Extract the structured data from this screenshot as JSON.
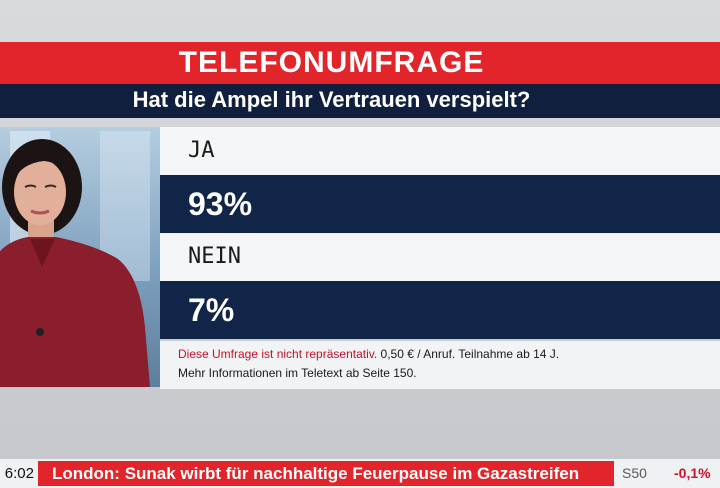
{
  "header": {
    "title": "TELEFONUMFRAGE",
    "question": "Hat die Ampel ihr Vertrauen verspielt?",
    "accent_color": "#e1252b",
    "navy_color": "#0f1f3d"
  },
  "poll": {
    "options": [
      {
        "label": "JA",
        "value": "93%"
      },
      {
        "label": "NEIN",
        "value": "7%"
      }
    ],
    "footnote": {
      "line1_red": "Diese Umfrage ist nicht repräsentativ.",
      "line1_rest": " 0,50 € / Anruf. Teilnahme ab 14 J.",
      "line2": "Mehr Informationen im Teletext ab Seite 150."
    }
  },
  "ticker": {
    "clock": "6:02",
    "headline": "London: Sunak wirbt für nachhaltige Feuerpause im Gazastreifen",
    "index_name": "S50",
    "index_change": "-0,1%"
  }
}
